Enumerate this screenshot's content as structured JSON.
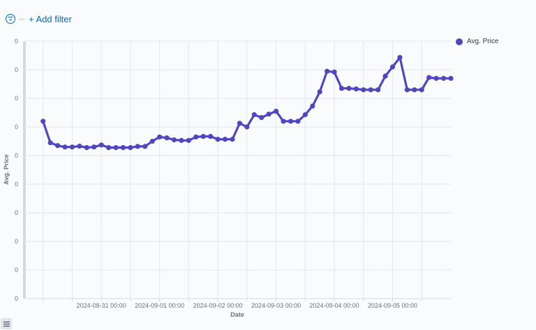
{
  "filter_bar": {
    "add_filter_label": "+ Add filter",
    "filter_icon": "filter-icon"
  },
  "legend": {
    "label": "Avg. Price"
  },
  "colors": {
    "series": "#5046c0",
    "grid": "#e3e6ea",
    "axis": "#d3dae6",
    "link": "#006bb8"
  },
  "chart_data": {
    "type": "line",
    "xlabel": "Date",
    "ylabel": "Avg. Price",
    "yticks": [
      "0",
      "0",
      "0",
      "0",
      "0",
      "0",
      "0",
      "0",
      "0",
      "0"
    ],
    "xticks": [
      "2024-08-31 00:00",
      "2024-09-01 00:00",
      "2024-09-02 00:00",
      "2024-09-03 00:00",
      "2024-09-04 00:00",
      "2024-09-05 00:00"
    ],
    "ylim": [
      0,
      9
    ],
    "grid": true,
    "legend_position": "top-right",
    "series": [
      {
        "name": "Avg. Price",
        "x": [
          0,
          0.125,
          0.25,
          0.375,
          0.5,
          0.625,
          0.75,
          0.875,
          1,
          1.125,
          1.25,
          1.375,
          1.5,
          1.625,
          1.75,
          1.875,
          2,
          2.125,
          2.25,
          2.375,
          2.5,
          2.625,
          2.75,
          2.875,
          3,
          3.125,
          3.25,
          3.375,
          3.5,
          3.625,
          3.75,
          3.875,
          4,
          4.125,
          4.25,
          4.375,
          4.5,
          4.625,
          4.75,
          4.875,
          5,
          5.125,
          5.25,
          5.375,
          5.5,
          5.625,
          5.75,
          5.875,
          6,
          6.125,
          6.25,
          6.375,
          6.5,
          6.625,
          6.75,
          6.875,
          7
        ],
        "values": [
          6.2,
          5.45,
          5.35,
          5.3,
          5.3,
          5.33,
          5.28,
          5.3,
          5.37,
          5.28,
          5.28,
          5.28,
          5.28,
          5.32,
          5.32,
          5.5,
          5.65,
          5.62,
          5.55,
          5.53,
          5.53,
          5.65,
          5.67,
          5.67,
          5.57,
          5.57,
          5.57,
          6.13,
          6.0,
          6.43,
          6.33,
          6.45,
          6.55,
          6.2,
          6.2,
          6.2,
          6.43,
          6.73,
          7.23,
          7.95,
          7.92,
          7.35,
          7.35,
          7.33,
          7.3,
          7.3,
          7.3,
          7.78,
          8.1,
          8.43,
          7.3,
          7.3,
          7.3,
          7.73,
          7.7,
          7.7,
          7.7
        ]
      }
    ]
  }
}
